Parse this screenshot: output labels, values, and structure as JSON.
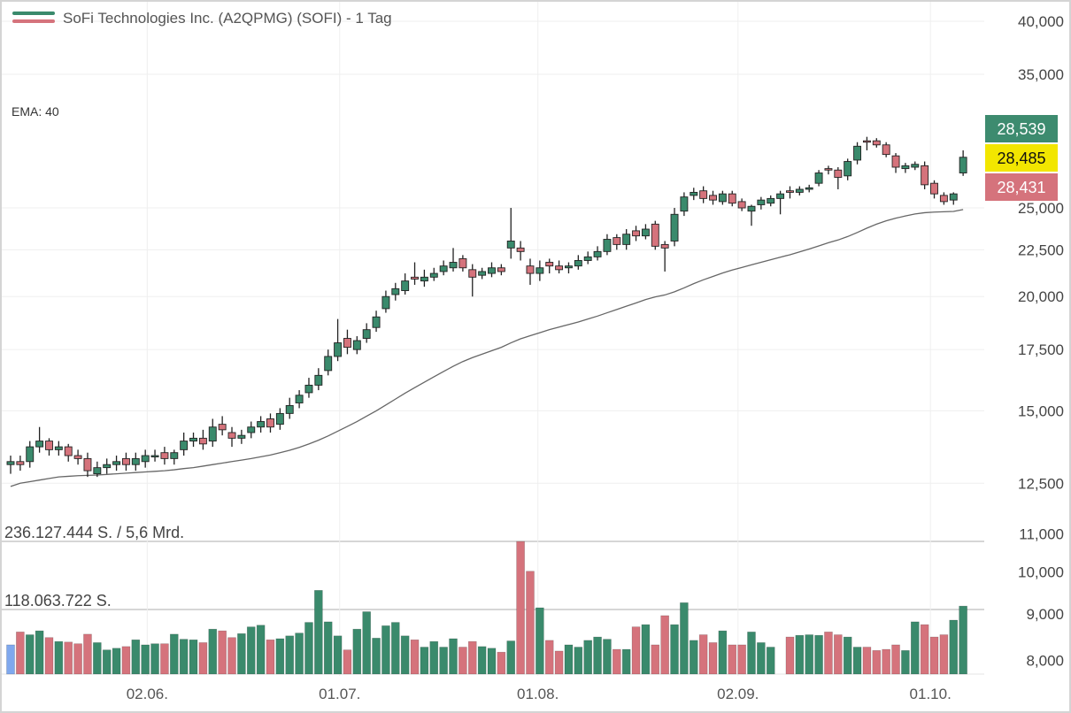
{
  "chart_data": {
    "type": "candlestick",
    "title": "SoFi Technologies Inc. (A2QPMG) (SOFI) - 1 Tag",
    "indicator_label": "EMA: 40",
    "volume_max_label": "236.127.444 S. / 5,6 Mrd.",
    "volume_mid_label": "118.063.722 S.",
    "y_scale": "log",
    "ylim": [
      7.6,
      40.0
    ],
    "price_ticks": [
      {
        "value": 40,
        "label": "40,000"
      },
      {
        "value": 35,
        "label": "35,000"
      },
      {
        "value": 25,
        "label": "25,000"
      },
      {
        "value": 22.5,
        "label": "22,500"
      },
      {
        "value": 20,
        "label": "20,000"
      },
      {
        "value": 17.5,
        "label": "17,500"
      },
      {
        "value": 15,
        "label": "15,000"
      },
      {
        "value": 12.5,
        "label": "12,500"
      },
      {
        "value": 11,
        "label": "11,000"
      },
      {
        "value": 10,
        "label": "10,000"
      },
      {
        "value": 9,
        "label": "9,000"
      },
      {
        "value": 8,
        "label": "8,000"
      }
    ],
    "price_labels": [
      {
        "label": "28,539",
        "kind": "high",
        "color": "#3d8b6f",
        "text_color": "#ffffff"
      },
      {
        "label": "28,485",
        "kind": "last",
        "color": "#f2e600",
        "text_color": "#111111"
      },
      {
        "label": "28,431",
        "kind": "low",
        "color": "#d5737c",
        "text_color": "#ffffff"
      }
    ],
    "x_ticks": [
      {
        "label": "02.06.",
        "index": 14.2
      },
      {
        "label": "01.07.",
        "index": 34.2
      },
      {
        "label": "01.08.",
        "index": 54.8
      },
      {
        "label": "02.09.",
        "index": 75.6
      },
      {
        "label": "01.10.",
        "index": 95.6
      }
    ],
    "colors": {
      "up": "#3a8a6c",
      "down": "#d5737c",
      "ema": "#666666",
      "first_volume": "#7fa8ee"
    },
    "open": [
      13.1,
      13.2,
      13.2,
      13.7,
      13.9,
      13.6,
      13.7,
      13.4,
      13.3,
      12.8,
      13.0,
      13.1,
      13.3,
      13.1,
      13.2,
      13.4,
      13.5,
      13.3,
      13.6,
      13.9,
      14.0,
      13.9,
      14.5,
      14.2,
      14.0,
      14.2,
      14.4,
      14.7,
      14.5,
      14.9,
      15.3,
      15.7,
      16.0,
      16.6,
      17.2,
      18.0,
      17.5,
      18.0,
      18.5,
      19.4,
      20.1,
      20.3,
      21.0,
      20.8,
      21.0,
      21.3,
      21.5,
      22.0,
      21.4,
      21.1,
      21.2,
      21.5,
      22.6,
      22.6,
      21.6,
      21.2,
      21.8,
      21.6,
      21.5,
      21.6,
      21.9,
      22.1,
      22.4,
      23.2,
      22.8,
      23.6,
      23.3,
      24.0,
      22.8,
      23.0,
      24.8,
      25.8,
      26.1,
      25.8,
      25.4,
      25.9,
      25.4,
      24.8,
      25.2,
      25.3,
      25.6,
      26.1,
      26.0,
      26.2,
      26.6,
      27.6,
      27.5,
      27.1,
      28.2,
      29.6,
      29.6,
      29.3,
      28.5,
      27.6,
      27.7,
      27.8,
      26.6,
      25.8,
      25.5,
      27.3
    ],
    "high": [
      13.4,
      13.4,
      13.9,
      14.4,
      14.0,
      13.9,
      13.8,
      13.6,
      13.5,
      13.2,
      13.3,
      13.4,
      13.5,
      13.5,
      13.6,
      13.6,
      13.7,
      13.6,
      14.2,
      14.2,
      14.3,
      14.7,
      14.8,
      14.4,
      14.3,
      14.6,
      14.8,
      14.9,
      15.1,
      15.5,
      15.8,
      16.3,
      16.7,
      17.5,
      18.9,
      18.4,
      18.1,
      18.7,
      19.3,
      20.3,
      20.7,
      21.2,
      21.8,
      21.4,
      21.5,
      21.9,
      22.6,
      22.2,
      21.7,
      21.5,
      21.8,
      21.7,
      25.0,
      23.0,
      22.0,
      21.9,
      22.0,
      21.9,
      21.8,
      22.2,
      22.4,
      22.7,
      23.4,
      23.4,
      23.7,
      23.9,
      24.0,
      24.2,
      23.0,
      25.0,
      26.0,
      26.3,
      26.4,
      26.1,
      26.1,
      26.1,
      25.6,
      25.2,
      25.7,
      25.8,
      26.1,
      26.4,
      26.4,
      26.5,
      27.5,
      27.8,
      27.7,
      28.3,
      29.5,
      29.9,
      29.8,
      29.5,
      28.7,
      28.0,
      28.1,
      28.1,
      26.8,
      26.0,
      26.0,
      28.9
    ],
    "low": [
      12.8,
      12.9,
      13.0,
      13.5,
      13.4,
      13.4,
      13.2,
      13.1,
      12.7,
      12.7,
      12.8,
      12.9,
      12.9,
      12.9,
      13.0,
      13.2,
      13.1,
      13.1,
      13.4,
      13.7,
      13.6,
      13.7,
      14.1,
      13.7,
      13.8,
      14.0,
      14.2,
      14.2,
      14.3,
      14.7,
      15.1,
      15.5,
      15.8,
      16.4,
      17.0,
      17.3,
      17.3,
      17.8,
      18.3,
      19.2,
      19.8,
      20.1,
      20.6,
      20.5,
      20.8,
      21.1,
      21.3,
      21.3,
      20.0,
      20.9,
      21.0,
      21.1,
      22.0,
      21.9,
      20.6,
      20.8,
      21.2,
      21.2,
      21.2,
      21.4,
      21.7,
      21.9,
      22.2,
      22.5,
      22.5,
      23.0,
      23.1,
      22.5,
      21.3,
      22.7,
      24.5,
      25.5,
      25.3,
      25.2,
      25.2,
      25.1,
      24.8,
      23.9,
      24.9,
      25.1,
      24.6,
      25.6,
      25.8,
      26.0,
      26.4,
      27.2,
      26.2,
      26.8,
      27.9,
      28.9,
      29.1,
      28.4,
      27.3,
      27.3,
      27.5,
      26.2,
      25.6,
      25.2,
      25.2,
      27.1
    ],
    "close": [
      13.2,
      13.1,
      13.7,
      13.9,
      13.6,
      13.7,
      13.4,
      13.3,
      12.9,
      13.0,
      13.1,
      13.2,
      13.1,
      13.3,
      13.4,
      13.4,
      13.3,
      13.5,
      13.9,
      14.0,
      13.8,
      14.4,
      14.3,
      14.0,
      14.1,
      14.4,
      14.6,
      14.4,
      14.9,
      15.2,
      15.6,
      16.0,
      16.4,
      17.2,
      17.8,
      17.6,
      17.9,
      18.4,
      19.0,
      20.0,
      20.4,
      20.8,
      20.9,
      21.0,
      21.2,
      21.6,
      21.8,
      21.5,
      21.0,
      21.3,
      21.5,
      21.3,
      23.0,
      22.4,
      21.2,
      21.5,
      21.6,
      21.4,
      21.6,
      21.9,
      22.1,
      22.4,
      23.1,
      22.8,
      23.4,
      23.3,
      23.7,
      22.7,
      22.6,
      24.6,
      25.7,
      26.0,
      25.6,
      25.5,
      25.9,
      25.3,
      25.0,
      25.1,
      25.5,
      25.6,
      25.9,
      26.0,
      26.2,
      26.3,
      27.3,
      27.5,
      27.0,
      28.1,
      29.2,
      29.5,
      29.3,
      28.6,
      27.7,
      27.8,
      27.9,
      26.5,
      25.9,
      25.4,
      25.9,
      28.4
    ],
    "ema40": [
      12.4,
      12.5,
      12.55,
      12.6,
      12.65,
      12.7,
      12.72,
      12.74,
      12.75,
      12.76,
      12.78,
      12.8,
      12.82,
      12.84,
      12.86,
      12.88,
      12.9,
      12.93,
      12.97,
      13.0,
      13.05,
      13.1,
      13.15,
      13.2,
      13.25,
      13.3,
      13.36,
      13.42,
      13.5,
      13.58,
      13.68,
      13.8,
      13.93,
      14.08,
      14.25,
      14.42,
      14.6,
      14.8,
      15.0,
      15.22,
      15.45,
      15.68,
      15.9,
      16.12,
      16.34,
      16.56,
      16.78,
      16.98,
      17.15,
      17.3,
      17.45,
      17.6,
      17.8,
      17.98,
      18.12,
      18.26,
      18.4,
      18.52,
      18.64,
      18.76,
      18.9,
      19.04,
      19.2,
      19.36,
      19.52,
      19.68,
      19.85,
      19.98,
      20.08,
      20.24,
      20.44,
      20.66,
      20.86,
      21.04,
      21.22,
      21.38,
      21.52,
      21.66,
      21.8,
      21.94,
      22.08,
      22.22,
      22.38,
      22.54,
      22.72,
      22.9,
      23.06,
      23.26,
      23.5,
      23.76,
      24.0,
      24.2,
      24.36,
      24.5,
      24.62,
      24.7,
      24.74,
      24.76,
      24.78,
      24.9
    ],
    "volume_millions": [
      52,
      75,
      70,
      77,
      65,
      58,
      57,
      54,
      71,
      56,
      43,
      46,
      49,
      61,
      52,
      54,
      54,
      71,
      62,
      61,
      56,
      80,
      77,
      65,
      72,
      84,
      87,
      61,
      63,
      68,
      73,
      92,
      149,
      93,
      68,
      43,
      80,
      111,
      64,
      86,
      92,
      68,
      61,
      48,
      58,
      48,
      63,
      48,
      58,
      49,
      46,
      39,
      59,
      236,
      183,
      118,
      60,
      41,
      52,
      48,
      60,
      66,
      62,
      44,
      44,
      84,
      88,
      52,
      104,
      88,
      127,
      60,
      70,
      56,
      77,
      52,
      52,
      75,
      56,
      48,
      0,
      66,
      69,
      70,
      69,
      75,
      70,
      66,
      48,
      48,
      42,
      44,
      52,
      42,
      93,
      88,
      66,
      70,
      96,
      121
    ],
    "volume_max_millions": 236.127444
  }
}
